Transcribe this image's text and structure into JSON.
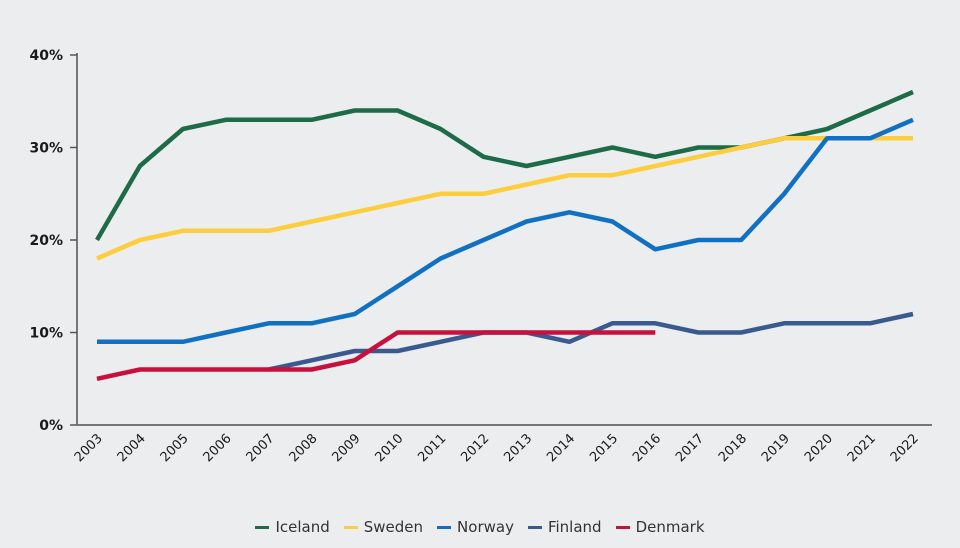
{
  "chart_data": {
    "type": "line",
    "title": "",
    "xlabel": "",
    "ylabel": "",
    "ylim": [
      0,
      40
    ],
    "yticks": [
      "0%",
      "10%",
      "20%",
      "30%",
      "40%"
    ],
    "ytick_values": [
      0,
      10,
      20,
      30,
      40
    ],
    "x": [
      "2003",
      "2004",
      "2005",
      "2006",
      "2007",
      "2008",
      "2009",
      "2010",
      "2011",
      "2012",
      "2013",
      "2014",
      "2015",
      "2016",
      "2017",
      "2018",
      "2019",
      "2020",
      "2021",
      "2022"
    ],
    "grid": false,
    "legend_position": "bottom",
    "series": [
      {
        "name": "Iceland",
        "color": "#1e6b47",
        "values": [
          20,
          28,
          32,
          33,
          33,
          33,
          34,
          34,
          32,
          29,
          28,
          29,
          30,
          29,
          30,
          30,
          31,
          32,
          34,
          36
        ]
      },
      {
        "name": "Sweden",
        "color": "#fccd3d",
        "values": [
          18,
          20,
          21,
          21,
          21,
          22,
          23,
          24,
          25,
          25,
          26,
          27,
          27,
          28,
          29,
          30,
          31,
          31,
          31,
          31
        ]
      },
      {
        "name": "Norway",
        "color": "#1170c1",
        "values": [
          9,
          9,
          9,
          10,
          11,
          11,
          12,
          15,
          18,
          20,
          22,
          23,
          22,
          19,
          20,
          20,
          25,
          31,
          31,
          33
        ]
      },
      {
        "name": "Finland",
        "color": "#3a5a8f",
        "values": [
          null,
          null,
          null,
          null,
          6,
          7,
          8,
          8,
          9,
          10,
          10,
          9,
          11,
          11,
          10,
          10,
          11,
          11,
          11,
          12
        ]
      },
      {
        "name": "Denmark",
        "color": "#c8103e",
        "values": [
          5,
          6,
          6,
          6,
          6,
          6,
          7,
          10,
          10,
          10,
          10,
          10,
          10,
          10,
          null,
          null,
          null,
          null,
          null,
          null
        ]
      }
    ]
  }
}
